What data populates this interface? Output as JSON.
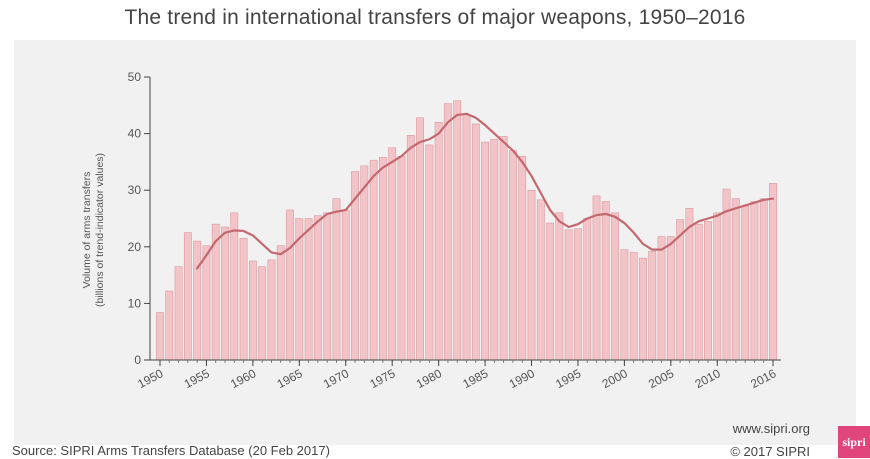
{
  "title": "The trend in international transfers of major weapons, 1950–2016",
  "source": "Source: SIPRI Arms Transfers Database (20 Feb 2017)",
  "website": "www.sipri.org",
  "copyright": "© 2017 SIPRI",
  "logo_text": "sipri",
  "colors": {
    "bar_fill": "#f2c4c8",
    "bar_stroke": "#d99aa0",
    "trend_line": "#c4686f",
    "background": "#f1f1f1",
    "logo": "#e0457b"
  },
  "chart_data": {
    "type": "bar",
    "ylabel_line1": "Volume of arms transfers",
    "ylabel_line2": "(billions of trend-indicator values)",
    "ylim": [
      0,
      50
    ],
    "yticks": [
      0,
      10,
      20,
      30,
      40,
      50
    ],
    "xticks": [
      1950,
      1955,
      1960,
      1965,
      1970,
      1975,
      1980,
      1985,
      1990,
      1995,
      2000,
      2005,
      2010,
      2016
    ],
    "grid": false,
    "legend": "none",
    "years": [
      1950,
      1951,
      1952,
      1953,
      1954,
      1955,
      1956,
      1957,
      1958,
      1959,
      1960,
      1961,
      1962,
      1963,
      1964,
      1965,
      1966,
      1967,
      1968,
      1969,
      1970,
      1971,
      1972,
      1973,
      1974,
      1975,
      1976,
      1977,
      1978,
      1979,
      1980,
      1981,
      1982,
      1983,
      1984,
      1985,
      1986,
      1987,
      1988,
      1989,
      1990,
      1991,
      1992,
      1993,
      1994,
      1995,
      1996,
      1997,
      1998,
      1999,
      2000,
      2001,
      2002,
      2003,
      2004,
      2005,
      2006,
      2007,
      2008,
      2009,
      2010,
      2011,
      2012,
      2013,
      2014,
      2015,
      2016
    ],
    "series": [
      {
        "type": "bar",
        "values": [
          8.4,
          12.2,
          16.5,
          22.5,
          21.0,
          20.2,
          24.0,
          23.5,
          26.0,
          21.5,
          17.5,
          16.5,
          17.7,
          20.2,
          26.5,
          25.0,
          25.0,
          25.5,
          26.0,
          28.5,
          26.5,
          33.3,
          34.3,
          35.3,
          35.8,
          37.5,
          36.0,
          39.7,
          42.8,
          38.0,
          42.0,
          45.3,
          45.8,
          43.3,
          41.7,
          38.5,
          39.0,
          39.5,
          37.0,
          36.0,
          30.0,
          28.3,
          24.2,
          26.0,
          23.0,
          23.2,
          25.0,
          29.0,
          28.0,
          26.0,
          19.5,
          19.0,
          18.0,
          19.2,
          21.8,
          21.8,
          24.8,
          26.8,
          24.0,
          24.5,
          26.0,
          30.2,
          28.5,
          27.2,
          28.0,
          28.5,
          31.2
        ]
      },
      {
        "type": "line",
        "values": [
          null,
          null,
          null,
          null,
          16.2,
          18.5,
          21.0,
          22.5,
          22.9,
          22.8,
          22.0,
          20.5,
          19.0,
          18.7,
          19.8,
          21.5,
          23.0,
          24.5,
          25.8,
          26.2,
          26.5,
          28.5,
          30.5,
          32.5,
          34.0,
          35.0,
          36.0,
          37.5,
          38.5,
          39.0,
          40.0,
          42.0,
          43.3,
          43.5,
          42.8,
          41.5,
          40.0,
          38.5,
          37.0,
          35.0,
          32.5,
          29.5,
          26.5,
          24.5,
          23.5,
          24.0,
          25.0,
          25.6,
          25.8,
          25.3,
          24.2,
          22.5,
          20.5,
          19.5,
          19.5,
          20.5,
          22.0,
          23.5,
          24.5,
          25.0,
          25.5,
          26.3,
          26.8,
          27.3,
          27.8,
          28.3,
          28.5
        ]
      }
    ]
  }
}
